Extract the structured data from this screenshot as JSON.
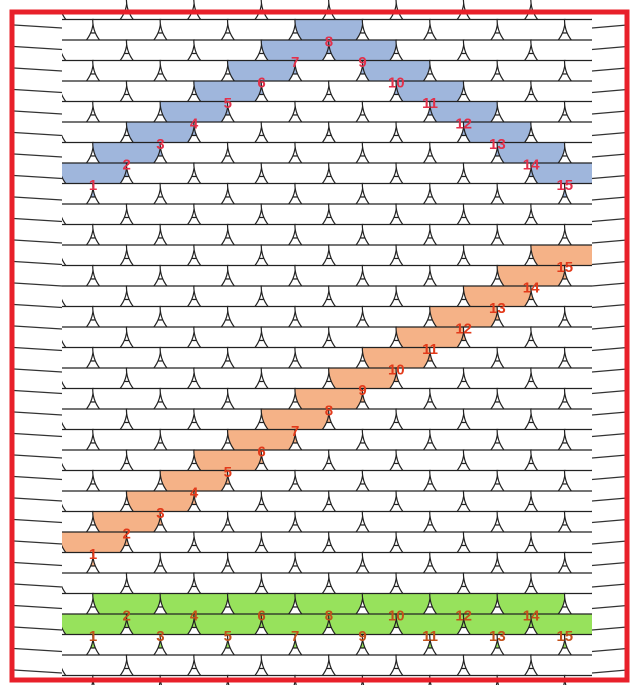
{
  "scale_rows": [
    {
      "labels": [
        "1",
        "2",
        "3",
        "4",
        "5",
        "6",
        "7",
        "8",
        "9",
        "10",
        "11",
        "12",
        "13",
        "14",
        "15"
      ]
    },
    {
      "labels": [
        "1",
        "2",
        "3",
        "4",
        "5",
        "6",
        "7",
        "8",
        "9",
        "10",
        "11",
        "12",
        "13",
        "14",
        "15"
      ]
    },
    {
      "labels": [
        "1",
        "2",
        "3",
        "4",
        "5",
        "6",
        "7",
        "8",
        "9",
        "10",
        "11",
        "12",
        "13",
        "14",
        "15"
      ]
    }
  ]
}
